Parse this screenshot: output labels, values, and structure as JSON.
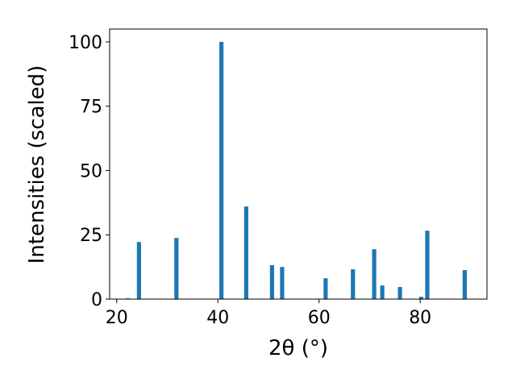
{
  "chart_data": {
    "type": "bar",
    "xlabel": "2θ (°)",
    "ylabel": "Intensities (scaled)",
    "x": [
      22.2,
      24.4,
      31.8,
      40.7,
      45.6,
      50.7,
      52.7,
      61.3,
      66.7,
      70.9,
      72.5,
      76.0,
      80.2,
      81.4,
      88.8
    ],
    "values": [
      0.3,
      22.2,
      23.8,
      100,
      36,
      13.2,
      12.5,
      8.1,
      11.6,
      19.4,
      5.3,
      4.7,
      0.9,
      26.6,
      11.3
    ],
    "color": "#1f77b4",
    "xlim": [
      18.6,
      93.2
    ],
    "xticks": [
      20,
      40,
      60,
      80
    ],
    "ylim": [
      0,
      105
    ],
    "yticks": [
      0,
      25,
      50,
      75,
      100
    ]
  }
}
